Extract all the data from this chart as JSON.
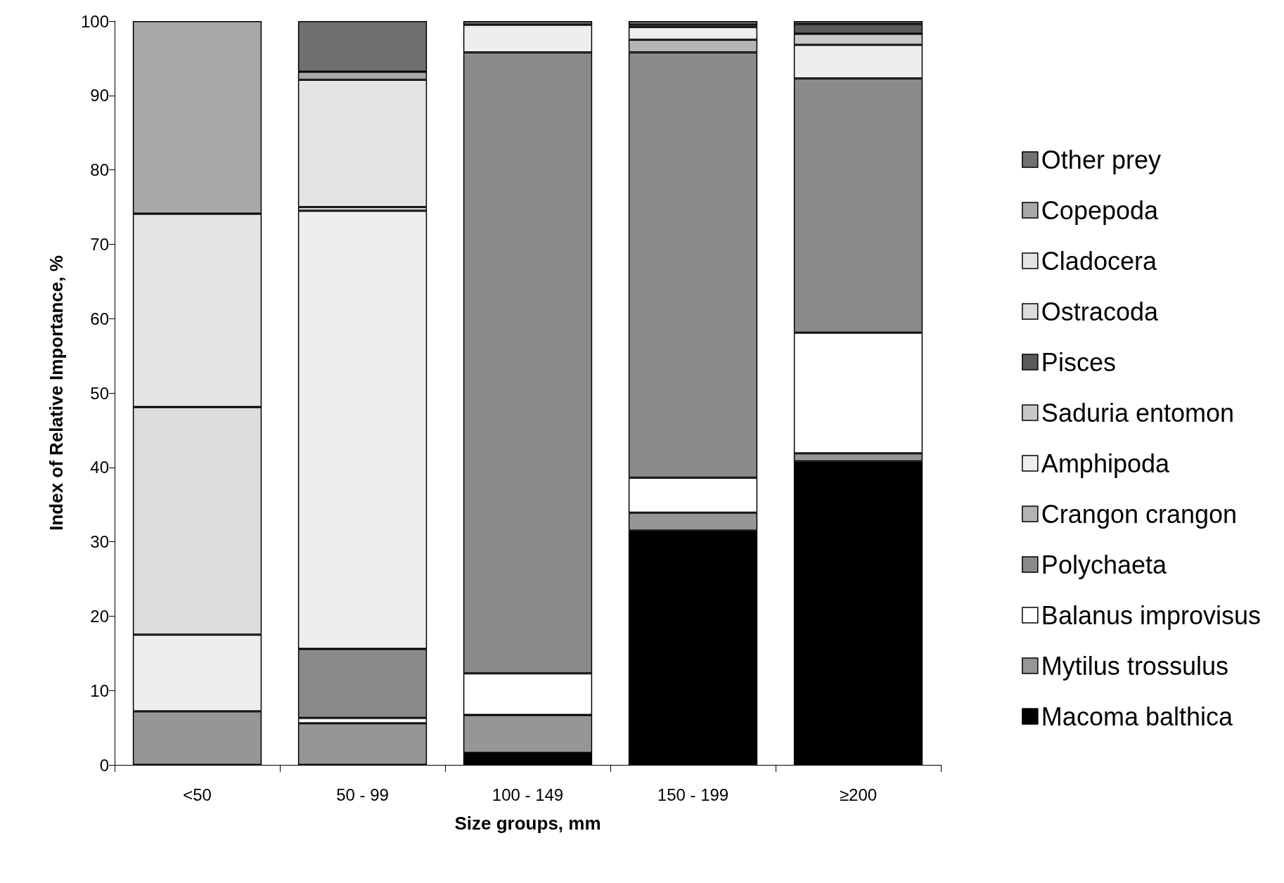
{
  "chart_data": {
    "type": "bar",
    "stacked": true,
    "xlabel": "Size groups, mm",
    "ylabel": "Index of Relative Importance, %",
    "categories": [
      "<50",
      "50 - 99",
      "100 - 149",
      "150 - 199",
      "≥200"
    ],
    "ylim": [
      0,
      100
    ],
    "yticks": [
      0,
      10,
      20,
      30,
      40,
      50,
      60,
      70,
      80,
      90,
      100
    ],
    "grid": false,
    "legend": "right",
    "series": [
      {
        "name": "Macoma balthica",
        "color": "#000000",
        "values": [
          null,
          null,
          1.6,
          31.5,
          40.8
        ]
      },
      {
        "name": "Mytilus trossulus",
        "color": "#969696",
        "values": [
          7.2,
          5.6,
          5.1,
          2.4,
          1.1
        ]
      },
      {
        "name": "Balanus improvisus",
        "color": "#ffffff",
        "values": [
          null,
          0.7,
          5.6,
          4.7,
          16.2
        ]
      },
      {
        "name": "Polychaeta",
        "color": "#8a8a8a",
        "values": [
          null,
          9.3,
          83.5,
          57.2,
          34.2
        ]
      },
      {
        "name": "Crangon crangon",
        "color": "#b4b4b4",
        "values": [
          null,
          null,
          null,
          1.7,
          null
        ]
      },
      {
        "name": "Amphipoda",
        "color": "#eeeeee",
        "values": [
          10.3,
          58.9,
          3.7,
          1.7,
          4.5
        ]
      },
      {
        "name": "Saduria entomon",
        "color": "#c8c8c8",
        "values": [
          null,
          null,
          null,
          0.3,
          1.5
        ]
      },
      {
        "name": "Pisces",
        "color": "#5a5a5a",
        "values": [
          null,
          null,
          null,
          null,
          1.3
        ]
      },
      {
        "name": "Ostracoda",
        "color": "#dcdcdc",
        "values": [
          30.6,
          0.5,
          null,
          null,
          null
        ]
      },
      {
        "name": "Cladocera",
        "color": "#e4e4e4",
        "values": [
          26.0,
          17.1,
          null,
          null,
          null
        ]
      },
      {
        "name": "Copepoda",
        "color": "#a8a8a8",
        "values": [
          25.9,
          1.1,
          null,
          null,
          null
        ]
      },
      {
        "name": "Other prey",
        "color": "#707070",
        "values": [
          null,
          6.8,
          0.5,
          0.5,
          0.4
        ]
      }
    ]
  }
}
